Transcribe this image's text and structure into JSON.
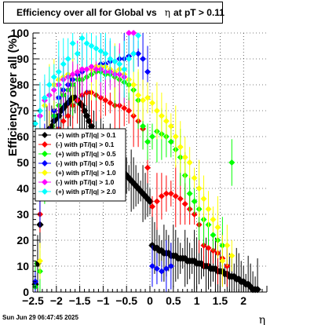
{
  "title": {
    "prefix": "Efficiency over all for Global vs",
    "symbol": "η",
    "suffix": "at pT > 0.11"
  },
  "footer": {
    "date": "Sun Jun 29 06:47:45 2025"
  },
  "chart_data": {
    "type": "scatter",
    "ylabel": "Efficiency over all (%)",
    "xlabel": "η",
    "xlim": [
      -2.5,
      2.5
    ],
    "ylim": [
      0,
      100
    ],
    "x_ticks": [
      -2.5,
      -2,
      -1.5,
      -1,
      -0.5,
      0,
      0.5,
      1,
      1.5,
      2
    ],
    "x_tick_labels": [
      "−2.5",
      "−2",
      "−1.5",
      "−1",
      "−0.5",
      "0",
      "0.5",
      "1",
      "1.5",
      "2"
    ],
    "y_ticks": [
      0,
      10,
      20,
      30,
      40,
      50,
      60,
      70,
      80,
      90,
      100
    ],
    "grid": true,
    "legend_position": "middle-left",
    "series": [
      {
        "name": "(+) with pT/|q| > 0.1",
        "color": "#000000",
        "x": [
          -2.45,
          -2.4,
          -2.35,
          -2.3,
          -2.25,
          -2.2,
          -2.15,
          -2.1,
          -2.05,
          -2.0,
          -1.95,
          -1.9,
          -1.85,
          -1.8,
          -1.75,
          -1.7,
          -1.65,
          -1.6,
          -1.55,
          -1.5,
          -1.45,
          -1.4,
          -1.35,
          -1.3,
          -1.25,
          -1.2,
          -1.15,
          -1.1,
          -1.05,
          -1.0,
          -0.95,
          -0.9,
          -0.85,
          -0.8,
          -0.75,
          -0.7,
          -0.65,
          -0.6,
          -0.55,
          -0.5,
          -0.45,
          -0.4,
          -0.35,
          -0.3,
          -0.25,
          -0.2,
          -0.15,
          -0.1,
          -0.05,
          0.0,
          0.05,
          0.1,
          0.15,
          0.2,
          0.25,
          0.3,
          0.35,
          0.4,
          0.45,
          0.5,
          0.55,
          0.6,
          0.65,
          0.7,
          0.75,
          0.8,
          0.85,
          0.9,
          0.95,
          1.0,
          1.05,
          1.1,
          1.15,
          1.2,
          1.25,
          1.3,
          1.35,
          1.4,
          1.45,
          1.5,
          1.55,
          1.6,
          1.65,
          1.7,
          1.75,
          1.8,
          1.85,
          1.9,
          1.95,
          2.0,
          2.05,
          2.1,
          2.15,
          2.2,
          2.25,
          2.3
        ],
        "y": [
          3,
          11,
          26,
          48,
          55,
          60,
          63,
          64,
          66,
          67,
          68,
          70,
          71,
          72,
          73,
          74,
          75,
          75,
          74,
          73,
          72,
          70,
          68,
          66,
          64,
          62,
          60,
          58,
          57,
          56,
          55,
          54,
          53,
          52,
          50,
          49,
          48,
          47,
          46,
          45,
          44,
          43,
          42,
          41,
          40,
          39,
          38,
          37,
          36,
          35,
          18,
          17,
          17,
          16,
          16,
          15,
          15,
          15,
          14,
          14,
          14,
          13,
          13,
          13,
          13,
          12,
          12,
          12,
          12,
          11,
          11,
          11,
          10,
          10,
          10,
          9,
          9,
          9,
          8,
          8,
          8,
          7,
          7,
          6,
          6,
          6,
          5,
          5,
          4,
          4,
          3,
          3,
          2,
          1,
          1,
          1
        ]
      },
      {
        "name": "(-) with pT/|q| > 0.1",
        "color": "#ff0000",
        "x": [
          -2.35,
          -2.25,
          -2.15,
          -2.05,
          -1.95,
          -1.85,
          -1.75,
          -1.65,
          -1.55,
          -1.45,
          -1.35,
          -1.25,
          -1.15,
          -1.05,
          -0.95,
          -0.85,
          -0.75,
          -0.65,
          -0.55,
          -0.45,
          -0.35,
          -0.25,
          -0.15,
          -0.05,
          0.05,
          0.15,
          0.25,
          0.35,
          0.45,
          0.55,
          0.65,
          0.75,
          0.85,
          0.95,
          1.05,
          1.15,
          1.25,
          1.35,
          1.45,
          1.55,
          1.65
        ],
        "y": [
          30,
          52,
          58,
          60,
          63,
          66,
          68,
          72,
          74,
          76,
          77,
          77,
          76,
          75,
          74,
          73,
          72,
          72,
          71,
          70,
          68,
          66,
          63,
          48,
          33,
          35,
          37,
          38,
          38,
          37,
          36,
          34,
          32,
          30,
          26,
          18,
          17,
          16,
          15,
          13,
          10
        ]
      },
      {
        "name": "(+) with pT/|q| > 0.5",
        "color": "#00ff00",
        "x": [
          -2.45,
          -2.35,
          -2.25,
          -2.15,
          -2.05,
          -1.95,
          -1.85,
          -1.75,
          -1.65,
          -1.55,
          -1.45,
          -1.35,
          -1.25,
          -1.15,
          -1.05,
          -0.95,
          -0.85,
          -0.75,
          -0.65,
          -0.55,
          -0.45,
          -0.35,
          -0.25,
          -0.15,
          -0.05,
          0.05,
          0.15,
          0.25,
          0.35,
          0.45,
          0.55,
          0.65,
          0.75,
          0.85,
          0.95,
          1.05,
          1.15,
          1.25,
          1.35,
          1.45,
          1.55,
          1.75
        ],
        "y": [
          2,
          8,
          40,
          58,
          68,
          72,
          76,
          78,
          80,
          82,
          82,
          83,
          84,
          85,
          85,
          84,
          84,
          83,
          82,
          81,
          80,
          78,
          74,
          64,
          58,
          60,
          62,
          61,
          60,
          58,
          55,
          52,
          45,
          38,
          35,
          32,
          28,
          26,
          22,
          20,
          18,
          50
        ]
      },
      {
        "name": "(-) with pT/|q| > 0.5",
        "color": "#0000ff",
        "x": [
          -2.45,
          -2.35,
          -2.25,
          -2.15,
          -2.05,
          -1.95,
          -1.85,
          -1.75,
          -1.65,
          -1.55,
          -1.45,
          -1.35,
          -1.25,
          -1.15,
          -1.05,
          -0.95,
          -0.85,
          -0.75,
          -0.65,
          -0.55,
          -0.45,
          -0.35,
          -0.25,
          -0.15,
          -0.05,
          0.05,
          0.15,
          0.25,
          0.35,
          0.45
        ],
        "y": [
          4,
          36,
          56,
          62,
          70,
          75,
          78,
          80,
          82,
          84,
          85,
          86,
          86,
          87,
          88,
          88,
          89,
          89,
          90,
          90,
          91,
          92,
          92,
          90,
          85,
          10,
          9,
          8,
          9,
          10
        ]
      },
      {
        "name": "(+) with pT/|q| > 1.0",
        "color": "#ffff00",
        "x": [
          -2.35,
          -2.25,
          -2.15,
          -2.05,
          -1.95,
          -1.85,
          -1.75,
          -1.65,
          -1.55,
          -1.45,
          -1.35,
          -1.25,
          -1.15,
          -1.05,
          -0.95,
          -0.85,
          -0.75,
          -0.65,
          -0.55,
          -0.45,
          -0.35,
          -0.25,
          -0.15,
          -0.05,
          0.05,
          0.15,
          0.25,
          0.35,
          0.45,
          0.55,
          0.65,
          0.75,
          0.85,
          0.95,
          1.05,
          1.15,
          1.25,
          1.35,
          1.45,
          1.55,
          1.65,
          1.75
        ],
        "y": [
          12,
          72,
          76,
          80,
          82,
          83,
          84,
          84,
          85,
          86,
          86,
          86,
          87,
          87,
          87,
          86,
          85,
          86,
          84,
          82,
          80,
          76,
          74,
          75,
          73,
          70,
          68,
          66,
          64,
          60,
          56,
          52,
          50,
          44,
          40,
          36,
          32,
          28,
          25,
          12,
          18,
          14
        ]
      },
      {
        "name": "(-) with pT/|q| > 1.0",
        "color": "#ff00ff",
        "x": [
          -2.35,
          -2.25,
          -2.15,
          -2.05,
          -1.95,
          -1.85,
          -1.75,
          -1.65,
          -1.55,
          -1.45,
          -1.35,
          -1.25,
          -1.15,
          -1.05,
          -0.95,
          -0.85,
          -0.75,
          -0.65,
          -0.55,
          -0.45,
          -0.35
        ],
        "y": [
          68,
          74,
          76,
          78,
          80,
          82,
          83,
          84,
          85,
          86,
          86,
          87,
          86,
          86,
          85,
          85,
          84,
          84,
          83,
          100,
          100
        ]
      },
      {
        "name": "(+) with pT/|q| > 2.0",
        "color": "#00ffff",
        "x": [
          -2.45,
          -2.35,
          -2.25,
          -2.15,
          -2.05,
          -1.95,
          -1.85,
          -1.75,
          -1.65,
          -1.55,
          -1.45,
          -1.35,
          -1.25,
          -1.15,
          -1.05,
          -0.95,
          -0.85,
          -0.75,
          -0.65,
          -0.55,
          -0.45,
          -0.35,
          -0.25
        ],
        "y": [
          65,
          70,
          75,
          80,
          83,
          85,
          88,
          90,
          96,
          92,
          98,
          96,
          95,
          94,
          93,
          92,
          90,
          89,
          88,
          86,
          90,
          92,
          99
        ]
      }
    ]
  }
}
